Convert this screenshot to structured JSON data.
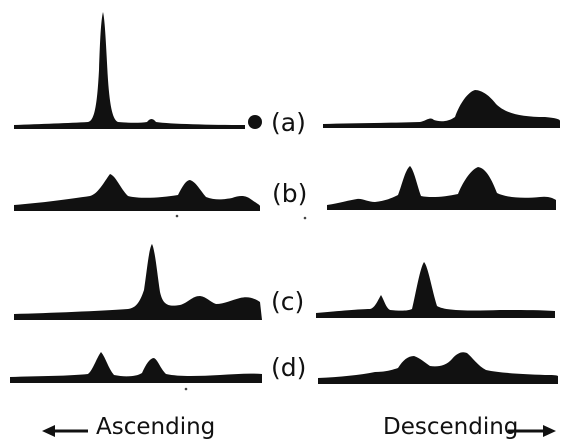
{
  "figure": {
    "panels": [
      {
        "id": "a",
        "label": "(a)"
      },
      {
        "id": "b",
        "label": "(b)"
      },
      {
        "id": "c",
        "label": "(c)"
      },
      {
        "id": "d",
        "label": "(d)"
      }
    ],
    "ascending_label": "Ascending",
    "descending_label": "Descending",
    "ink_color": "#111111",
    "background_color": "#ffffff",
    "arrow_icons": [
      "arrow-left-icon",
      "arrow-right-icon"
    ]
  }
}
